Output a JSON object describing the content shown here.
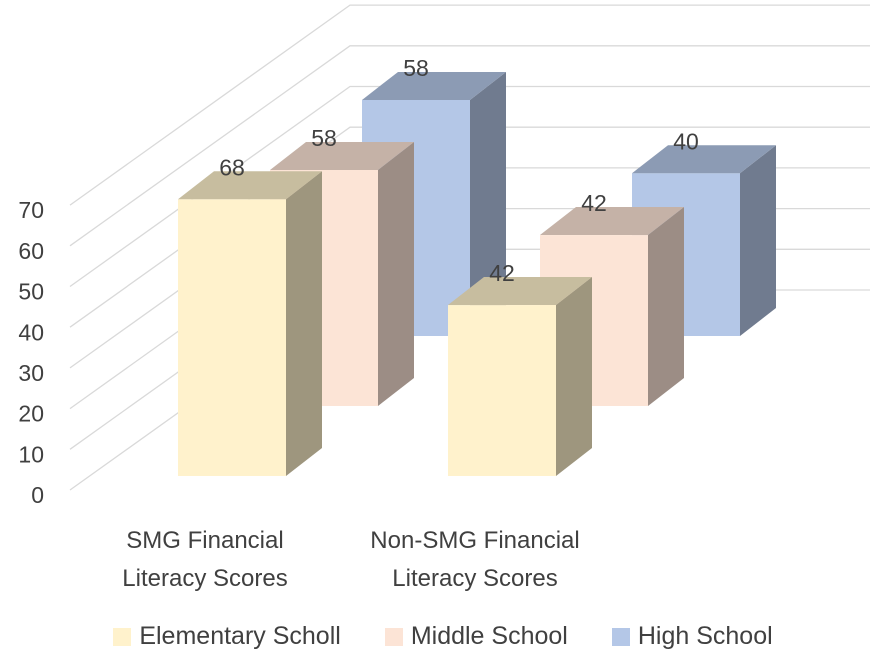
{
  "chart_data": {
    "type": "bar3d",
    "categories": [
      "SMG Financial Literacy Scores",
      "Non-SMG Financial Literacy Scores"
    ],
    "series": [
      {
        "name": "Elementary Scholl",
        "color": "#fff2cc",
        "values": [
          68,
          42
        ]
      },
      {
        "name": "Middle School",
        "color": "#fce4d6",
        "values": [
          58,
          42
        ]
      },
      {
        "name": "High School",
        "color": "#b4c7e7",
        "values": [
          58,
          40
        ]
      }
    ],
    "ylim": [
      0,
      70
    ],
    "yticks": [
      0,
      10,
      20,
      30,
      40,
      50,
      60,
      70
    ],
    "grid": true,
    "legend": "bottom"
  }
}
